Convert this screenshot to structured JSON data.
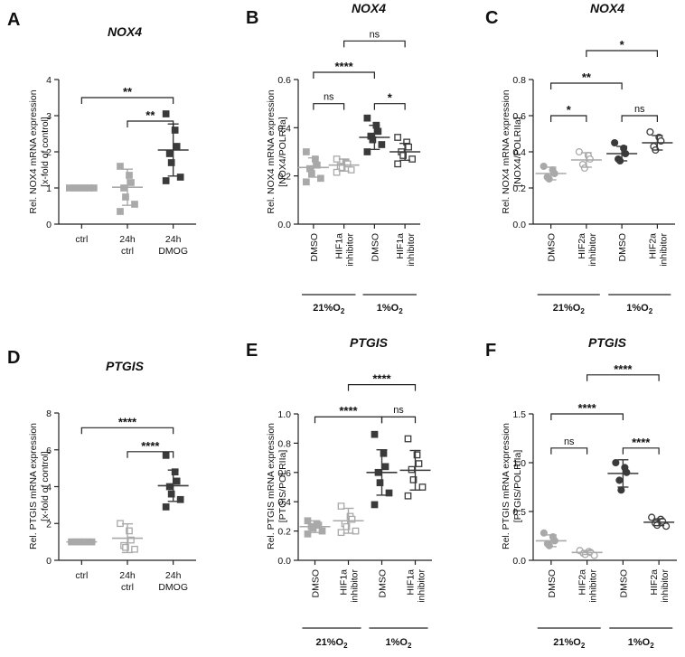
{
  "figure_colors": {
    "grey": "#a9a9a9",
    "dark": "#3a3a3a",
    "open": "#777777"
  },
  "chart_data": [
    {
      "panel": "A",
      "title": "NOX4",
      "type": "scatter",
      "ylabel_lines": [
        "Rel. NOX4 mRNA expression",
        "[x-fold of control]"
      ],
      "ylim": [
        0,
        4
      ],
      "yticks": [
        "0",
        "1",
        "2",
        "3",
        "4"
      ],
      "categories": [
        {
          "lines": [
            "ctrl"
          ]
        },
        {
          "lines": [
            "24h",
            "ctrl"
          ]
        },
        {
          "lines": [
            "24h",
            "DMOG"
          ]
        }
      ],
      "groups": [
        {
          "mean": 1.0,
          "sd": 0.0,
          "color": "grey",
          "shape": "square",
          "points": [
            1,
            1,
            1,
            1,
            1,
            1,
            1
          ]
        },
        {
          "mean": 1.02,
          "sd": 0.5,
          "color": "grey",
          "shape": "square",
          "points": [
            1.6,
            1.35,
            1.15,
            1.0,
            0.75,
            0.55,
            0.35
          ]
        },
        {
          "mean": 2.05,
          "sd": 0.72,
          "color": "dark",
          "shape": "square",
          "points": [
            3.05,
            2.6,
            2.15,
            1.95,
            1.7,
            1.3,
            1.2
          ]
        }
      ],
      "comparisons": [
        {
          "from": 0,
          "to": 2,
          "label": "**",
          "y": 3.5
        },
        {
          "from": 1,
          "to": 2,
          "label": "**",
          "y": 2.85
        }
      ],
      "group_labels": []
    },
    {
      "panel": "B",
      "title": "NOX4",
      "type": "scatter",
      "ylabel_lines": [
        "Rel. NOX4 mRNA expression",
        "[NOX4/POLRIIa]"
      ],
      "ylim": [
        0,
        0.6
      ],
      "yticks": [
        "0.0",
        "0.2",
        "0.4",
        "0.6"
      ],
      "categories": [
        {
          "lines": [
            "DMSO"
          ]
        },
        {
          "lines": [
            "HIF1a",
            "inhibitor"
          ]
        },
        {
          "lines": [
            "DMSO"
          ]
        },
        {
          "lines": [
            "HIF1a",
            "inhibitor"
          ]
        }
      ],
      "groups": [
        {
          "mean": 0.235,
          "sd": 0.04,
          "color": "grey",
          "shape": "square",
          "points": [
            0.3,
            0.27,
            0.245,
            0.23,
            0.21,
            0.19,
            0.175
          ]
        },
        {
          "mean": 0.245,
          "sd": 0.025,
          "color": "grey",
          "shape": "square_open",
          "points": [
            0.27,
            0.255,
            0.25,
            0.24,
            0.235,
            0.225,
            0.215
          ]
        },
        {
          "mean": 0.36,
          "sd": 0.05,
          "color": "dark",
          "shape": "square",
          "points": [
            0.44,
            0.41,
            0.385,
            0.365,
            0.35,
            0.33,
            0.3
          ]
        },
        {
          "mean": 0.3,
          "sd": 0.035,
          "color": "dark",
          "shape": "square_open",
          "points": [
            0.36,
            0.34,
            0.32,
            0.3,
            0.285,
            0.27,
            0.25
          ]
        }
      ],
      "comparisons": [
        {
          "from": 0,
          "to": 1,
          "label": "ns",
          "y": 0.5
        },
        {
          "from": 0,
          "to": 2,
          "label": "****",
          "y": 0.63
        },
        {
          "from": 2,
          "to": 3,
          "label": "*",
          "y": 0.5
        },
        {
          "from": 1,
          "to": 3,
          "label": "ns",
          "y": 0.76
        }
      ],
      "group_labels": [
        {
          "from": 0,
          "to": 1,
          "text": "21%O",
          "sub": "2"
        },
        {
          "from": 2,
          "to": 3,
          "text": "1%O",
          "sub": "2"
        }
      ]
    },
    {
      "panel": "C",
      "title": "NOX4",
      "type": "scatter",
      "ylabel_lines": [
        "Rel. NOX4 mRNA expression",
        "[NOX4/POLRIIa]"
      ],
      "ylim": [
        0,
        0.8
      ],
      "yticks": [
        "0.0",
        "0.2",
        "0.4",
        "0.6",
        "0.8"
      ],
      "categories": [
        {
          "lines": [
            "DMSO"
          ]
        },
        {
          "lines": [
            "HIF2a",
            "inhibitor"
          ]
        },
        {
          "lines": [
            "DMSO"
          ]
        },
        {
          "lines": [
            "HIF2a",
            "inhibitor"
          ]
        }
      ],
      "groups": [
        {
          "mean": 0.28,
          "sd": 0.035,
          "color": "grey",
          "shape": "circle",
          "points": [
            0.32,
            0.3,
            0.28,
            0.26,
            0.25
          ]
        },
        {
          "mean": 0.355,
          "sd": 0.04,
          "color": "grey",
          "shape": "circle_open",
          "points": [
            0.4,
            0.38,
            0.36,
            0.33,
            0.31
          ]
        },
        {
          "mean": 0.39,
          "sd": 0.04,
          "color": "dark",
          "shape": "circle",
          "points": [
            0.45,
            0.42,
            0.39,
            0.36,
            0.35
          ]
        },
        {
          "mean": 0.45,
          "sd": 0.04,
          "color": "dark",
          "shape": "circle_open",
          "points": [
            0.51,
            0.48,
            0.46,
            0.43,
            0.41
          ]
        }
      ],
      "comparisons": [
        {
          "from": 0,
          "to": 1,
          "label": "*",
          "y": 0.6
        },
        {
          "from": 2,
          "to": 3,
          "label": "ns",
          "y": 0.6
        },
        {
          "from": 0,
          "to": 2,
          "label": "**",
          "y": 0.78
        },
        {
          "from": 1,
          "to": 3,
          "label": "*",
          "y": 0.96
        }
      ],
      "group_labels": [
        {
          "from": 0,
          "to": 1,
          "text": "21%O",
          "sub": "2"
        },
        {
          "from": 2,
          "to": 3,
          "text": "1%O",
          "sub": "2"
        }
      ]
    },
    {
      "panel": "D",
      "title": "PTGIS",
      "type": "scatter",
      "ylabel_lines": [
        "Rel. PTGIS mRNA expression",
        "[x-fold of control]"
      ],
      "ylim": [
        0,
        8
      ],
      "yticks": [
        "0",
        "2",
        "4",
        "6",
        "8"
      ],
      "categories": [
        {
          "lines": [
            "ctrl"
          ]
        },
        {
          "lines": [
            "24h",
            "ctrl"
          ]
        },
        {
          "lines": [
            "24h",
            "DMOG"
          ]
        }
      ],
      "groups": [
        {
          "mean": 1.0,
          "sd": 0.0,
          "color": "grey",
          "shape": "square",
          "points": [
            1,
            1,
            1,
            1,
            1,
            1
          ]
        },
        {
          "mean": 1.2,
          "sd": 0.78,
          "color": "grey",
          "shape": "square_open",
          "points": [
            2.0,
            1.6,
            1.1,
            0.8,
            0.7,
            0.6
          ]
        },
        {
          "mean": 4.05,
          "sd": 0.85,
          "color": "dark",
          "shape": "square",
          "points": [
            5.7,
            4.8,
            4.3,
            4.0,
            3.6,
            3.3,
            2.9
          ]
        }
      ],
      "comparisons": [
        {
          "from": 0,
          "to": 2,
          "label": "****",
          "y": 7.2
        },
        {
          "from": 1,
          "to": 2,
          "label": "****",
          "y": 5.9
        }
      ],
      "group_labels": []
    },
    {
      "panel": "E",
      "title": "PTGIS",
      "type": "scatter",
      "ylabel_lines": [
        "Rel. PTGIS mRNA expression",
        "[PTGIS/POLRIIa]"
      ],
      "ylim": [
        0,
        1.0
      ],
      "yticks": [
        "0.0",
        "0.2",
        "0.4",
        "0.6",
        "0.8",
        "1.0"
      ],
      "categories": [
        {
          "lines": [
            "DMSO"
          ]
        },
        {
          "lines": [
            "HIF1a",
            "inhibitor"
          ]
        },
        {
          "lines": [
            "DMSO"
          ]
        },
        {
          "lines": [
            "HIF1a",
            "inhibitor"
          ]
        }
      ],
      "groups": [
        {
          "mean": 0.23,
          "sd": 0.04,
          "color": "grey",
          "shape": "square",
          "points": [
            0.27,
            0.25,
            0.24,
            0.23,
            0.22,
            0.2,
            0.18
          ]
        },
        {
          "mean": 0.27,
          "sd": 0.085,
          "color": "grey",
          "shape": "square_open",
          "points": [
            0.37,
            0.3,
            0.28,
            0.25,
            0.23,
            0.2,
            0.19
          ]
        },
        {
          "mean": 0.6,
          "sd": 0.155,
          "color": "dark",
          "shape": "square",
          "points": [
            0.86,
            0.73,
            0.64,
            0.6,
            0.53,
            0.46,
            0.38
          ]
        },
        {
          "mean": 0.615,
          "sd": 0.135,
          "color": "dark",
          "shape": "square_open",
          "points": [
            0.83,
            0.72,
            0.66,
            0.62,
            0.55,
            0.5,
            0.44
          ]
        }
      ],
      "comparisons": [
        {
          "from": 0,
          "to": 2,
          "label": "****",
          "y": 0.98
        },
        {
          "from": 2,
          "to": 3,
          "label": "ns",
          "y": 0.98
        },
        {
          "from": 1,
          "to": 3,
          "label": "****",
          "y": 1.2
        }
      ],
      "group_labels": [
        {
          "from": 0,
          "to": 1,
          "text": "21%O",
          "sub": "2"
        },
        {
          "from": 2,
          "to": 3,
          "text": "1%O",
          "sub": "2"
        }
      ]
    },
    {
      "panel": "F",
      "title": "PTGIS",
      "type": "scatter",
      "ylabel_lines": [
        "Rel. PTGIS mRNA expression",
        "[PTGIS/POLRIIa]"
      ],
      "ylim": [
        0,
        1.5
      ],
      "yticks": [
        "0.0",
        "0.5",
        "1.0",
        "1.5"
      ],
      "categories": [
        {
          "lines": [
            "DMSO"
          ]
        },
        {
          "lines": [
            "HIF2a",
            "inhibitor"
          ]
        },
        {
          "lines": [
            "DMSO"
          ]
        },
        {
          "lines": [
            "HIF2a",
            "inhibitor"
          ]
        }
      ],
      "groups": [
        {
          "mean": 0.2,
          "sd": 0.06,
          "color": "grey",
          "shape": "circle",
          "points": [
            0.28,
            0.24,
            0.2,
            0.17,
            0.15
          ]
        },
        {
          "mean": 0.08,
          "sd": 0.02,
          "color": "grey",
          "shape": "circle_open",
          "points": [
            0.1,
            0.09,
            0.08,
            0.07,
            0.06,
            0.05
          ]
        },
        {
          "mean": 0.89,
          "sd": 0.14,
          "color": "dark",
          "shape": "circle",
          "points": [
            1.0,
            0.95,
            0.9,
            0.82,
            0.72
          ]
        },
        {
          "mean": 0.39,
          "sd": 0.035,
          "color": "dark",
          "shape": "circle_open",
          "points": [
            0.44,
            0.42,
            0.4,
            0.38,
            0.36,
            0.35
          ]
        }
      ],
      "comparisons": [
        {
          "from": 0,
          "to": 1,
          "label": "ns",
          "y": 1.15
        },
        {
          "from": 0,
          "to": 2,
          "label": "****",
          "y": 1.5
        },
        {
          "from": 2,
          "to": 3,
          "label": "****",
          "y": 1.15
        },
        {
          "from": 1,
          "to": 3,
          "label": "****",
          "y": 1.9
        }
      ],
      "group_labels": [
        {
          "from": 0,
          "to": 1,
          "text": "21%O",
          "sub": "2"
        },
        {
          "from": 2,
          "to": 3,
          "text": "1%O",
          "sub": "2"
        }
      ]
    }
  ]
}
